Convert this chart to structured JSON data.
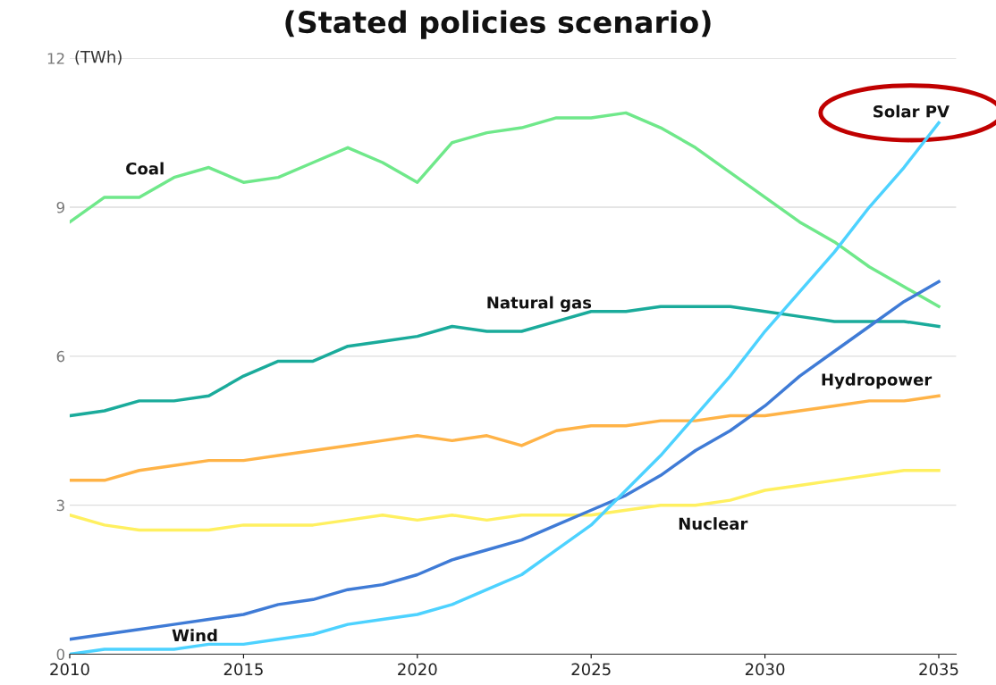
{
  "chart_data": {
    "type": "line",
    "title": "(Stated policies scenario)",
    "ylabel": "(TWh)",
    "x": [
      2010,
      2011,
      2012,
      2013,
      2014,
      2015,
      2016,
      2017,
      2018,
      2019,
      2020,
      2021,
      2022,
      2023,
      2024,
      2025,
      2026,
      2027,
      2028,
      2029,
      2030,
      2031,
      2032,
      2033,
      2034,
      2035
    ],
    "series": [
      {
        "name": "Coal",
        "color": "#6fe88a",
        "values": [
          8.7,
          9.2,
          9.2,
          9.6,
          9.8,
          9.5,
          9.6,
          9.9,
          10.2,
          9.9,
          9.5,
          10.3,
          10.5,
          10.6,
          10.8,
          10.8,
          10.9,
          10.6,
          10.2,
          9.7,
          9.2,
          8.7,
          8.3,
          7.8,
          7.4,
          7.0
        ]
      },
      {
        "name": "Natural gas",
        "color": "#1aab9b",
        "values": [
          4.8,
          4.9,
          5.1,
          5.1,
          5.2,
          5.6,
          5.9,
          5.9,
          6.2,
          6.3,
          6.4,
          6.6,
          6.5,
          6.5,
          6.7,
          6.9,
          6.9,
          7.0,
          7.0,
          7.0,
          6.9,
          6.8,
          6.7,
          6.7,
          6.7,
          6.6
        ]
      },
      {
        "name": "Hydropower",
        "color": "#ffb347",
        "values": [
          3.5,
          3.5,
          3.7,
          3.8,
          3.9,
          3.9,
          4.0,
          4.1,
          4.2,
          4.3,
          4.4,
          4.3,
          4.4,
          4.2,
          4.5,
          4.6,
          4.6,
          4.7,
          4.7,
          4.8,
          4.8,
          4.9,
          5.0,
          5.1,
          5.1,
          5.2
        ]
      },
      {
        "name": "Nuclear",
        "color": "#fff060",
        "values": [
          2.8,
          2.6,
          2.5,
          2.5,
          2.5,
          2.6,
          2.6,
          2.6,
          2.7,
          2.8,
          2.7,
          2.8,
          2.7,
          2.8,
          2.8,
          2.8,
          2.9,
          3.0,
          3.0,
          3.1,
          3.3,
          3.4,
          3.5,
          3.6,
          3.7,
          3.7
        ]
      },
      {
        "name": "Wind",
        "color": "#3f7bd6",
        "values": [
          0.3,
          0.4,
          0.5,
          0.6,
          0.7,
          0.8,
          1.0,
          1.1,
          1.3,
          1.4,
          1.6,
          1.9,
          2.1,
          2.3,
          2.6,
          2.9,
          3.2,
          3.6,
          4.1,
          4.5,
          5.0,
          5.6,
          6.1,
          6.6,
          7.1,
          7.5
        ]
      },
      {
        "name": "Solar PV",
        "color": "#4dd2ff",
        "values": [
          0.0,
          0.1,
          0.1,
          0.1,
          0.2,
          0.2,
          0.3,
          0.4,
          0.6,
          0.7,
          0.8,
          1.0,
          1.3,
          1.6,
          2.1,
          2.6,
          3.3,
          4.0,
          4.8,
          5.6,
          6.5,
          7.3,
          8.1,
          9.0,
          9.8,
          10.7
        ]
      }
    ],
    "xlim": [
      2010,
      2035.5
    ],
    "xticks": [
      2010,
      2015,
      2020,
      2025,
      2030,
      2035
    ],
    "ylim": [
      0,
      12
    ],
    "yticks": [
      0,
      3,
      6,
      9,
      12
    ],
    "grid": "y",
    "legend": false,
    "marker": "none",
    "line_style": "solid"
  }
}
